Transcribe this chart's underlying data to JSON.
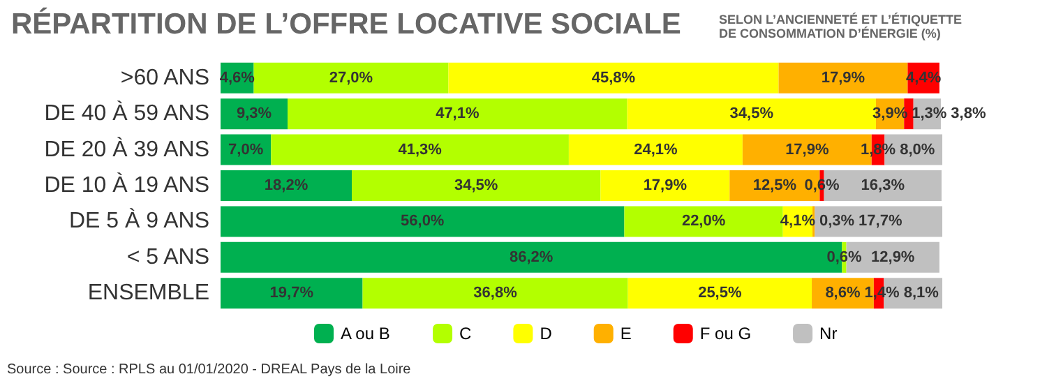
{
  "chart_data": {
    "type": "bar",
    "orientation": "horizontal",
    "stacked": true,
    "title": "RÉPARTITION DE L’OFFRE LOCATIVE SOCIALE",
    "subtitle": "SELON L’ANCIENNETÉ ET L’ÉTIQUETTE\nDE CONSOMMATION D’ÉNERGIE (%)",
    "categories": [
      ">60 ANS",
      "DE 40 À 59 ANS",
      "DE 20 À 39 ANS",
      "DE 10 À 19 ANS",
      "DE 5 À 9 ANS",
      "< 5 ANS",
      "ENSEMBLE"
    ],
    "series": [
      {
        "name": "A ou B",
        "color": "#00b050",
        "values": [
          4.6,
          9.3,
          7.0,
          18.2,
          56.0,
          86.2,
          19.7
        ],
        "value_labels": [
          "4,6%",
          "9,3%",
          "7,0%",
          "18,2%",
          "56,0%",
          "86,2%",
          "19,7%"
        ]
      },
      {
        "name": "C",
        "color": "#b3ff00",
        "values": [
          27.0,
          47.1,
          41.3,
          34.5,
          22.0,
          0.6,
          36.8
        ],
        "value_labels": [
          "27,0%",
          "47,1%",
          "41,3%",
          "34,5%",
          "22,0%",
          "0,6%",
          "36,8%"
        ]
      },
      {
        "name": "D",
        "color": "#ffff00",
        "values": [
          45.8,
          34.5,
          24.1,
          17.9,
          4.1,
          null,
          25.5
        ],
        "value_labels": [
          "45,8%",
          "34,5%",
          "24,1%",
          "17,9%",
          "4,1%",
          null,
          "25,5%"
        ]
      },
      {
        "name": "E",
        "color": "#ffb000",
        "values": [
          17.9,
          3.9,
          17.9,
          12.5,
          0.3,
          null,
          8.6
        ],
        "value_labels": [
          "17,9%",
          "3,9%",
          "17,9%",
          "12,5%",
          "0,3%",
          null,
          "8,6%"
        ]
      },
      {
        "name": "F ou G",
        "color": "#ff0000",
        "values": [
          4.4,
          1.3,
          1.8,
          0.6,
          null,
          null,
          1.4
        ],
        "value_labels": [
          "4,4%",
          "1,3%",
          "1,8%",
          "0,6%",
          null,
          null,
          "1,4%"
        ]
      },
      {
        "name": "Nr",
        "color": "#c0c0c0",
        "values": [
          null,
          3.8,
          8.0,
          16.3,
          17.7,
          12.9,
          8.1
        ],
        "value_labels": [
          null,
          "3,8%",
          "8,0%",
          "16,3%",
          "17,7%",
          "12,9%",
          "8,1%"
        ]
      }
    ],
    "legend": "bottom",
    "annotations": [
      "Source : Source : RPLS au 01/01/2020 - DREAL Pays de la Loire"
    ]
  }
}
